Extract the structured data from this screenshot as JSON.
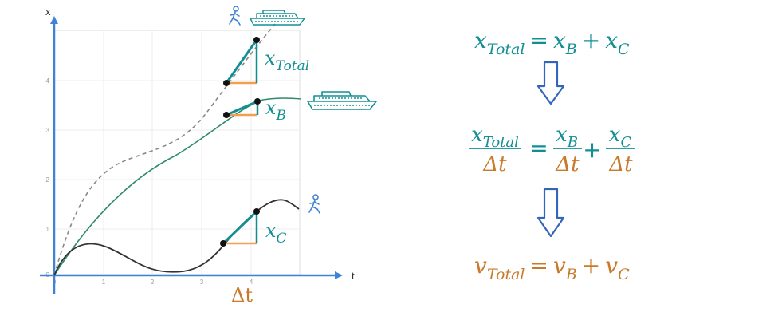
{
  "graph": {
    "y_axis_label": "x",
    "x_axis_label": "t",
    "x_ticks": [
      "0",
      "1",
      "2",
      "3",
      "4"
    ],
    "y_ticks": [
      "0",
      "1",
      "2",
      "3",
      "4"
    ],
    "delta_label": "Δt",
    "total_label": {
      "main": "x",
      "sub": "Total"
    },
    "b_label": {
      "main": "x",
      "sub": "B"
    },
    "c_label": {
      "main": "x",
      "sub": "C"
    }
  },
  "equations": {
    "eq1": {
      "lhs_main": "x",
      "lhs_sub": "Total",
      "eq": "=",
      "t1_main": "x",
      "t1_sub": "B",
      "plus": "+",
      "t2_main": "x",
      "t2_sub": "C"
    },
    "eq2": {
      "f1_num_main": "x",
      "f1_num_sub": "Total",
      "f1_den": "Δt",
      "eq": "=",
      "f2_num_main": "x",
      "f2_num_sub": "B",
      "f2_den": "Δt",
      "plus": "+",
      "f3_num_main": "x",
      "f3_num_sub": "C",
      "f3_den": "Δt"
    },
    "eq3": {
      "lhs_main": "v",
      "lhs_sub": "Total",
      "eq": "=",
      "t1_main": "v",
      "t1_sub": "B",
      "plus": "+",
      "t2_main": "v",
      "t2_sub": "C"
    }
  },
  "colors": {
    "teal": "#138f94",
    "orange": "#c87a2a",
    "blue_axis": "#3f82d8",
    "arrow_blue": "#3366bb",
    "green_curve": "#2e8b6b",
    "dark_curve": "#333333",
    "dashed_curve": "#888888",
    "delta_orange": "#f0a050"
  },
  "icons": [
    "runner-icon",
    "ship-icon"
  ]
}
